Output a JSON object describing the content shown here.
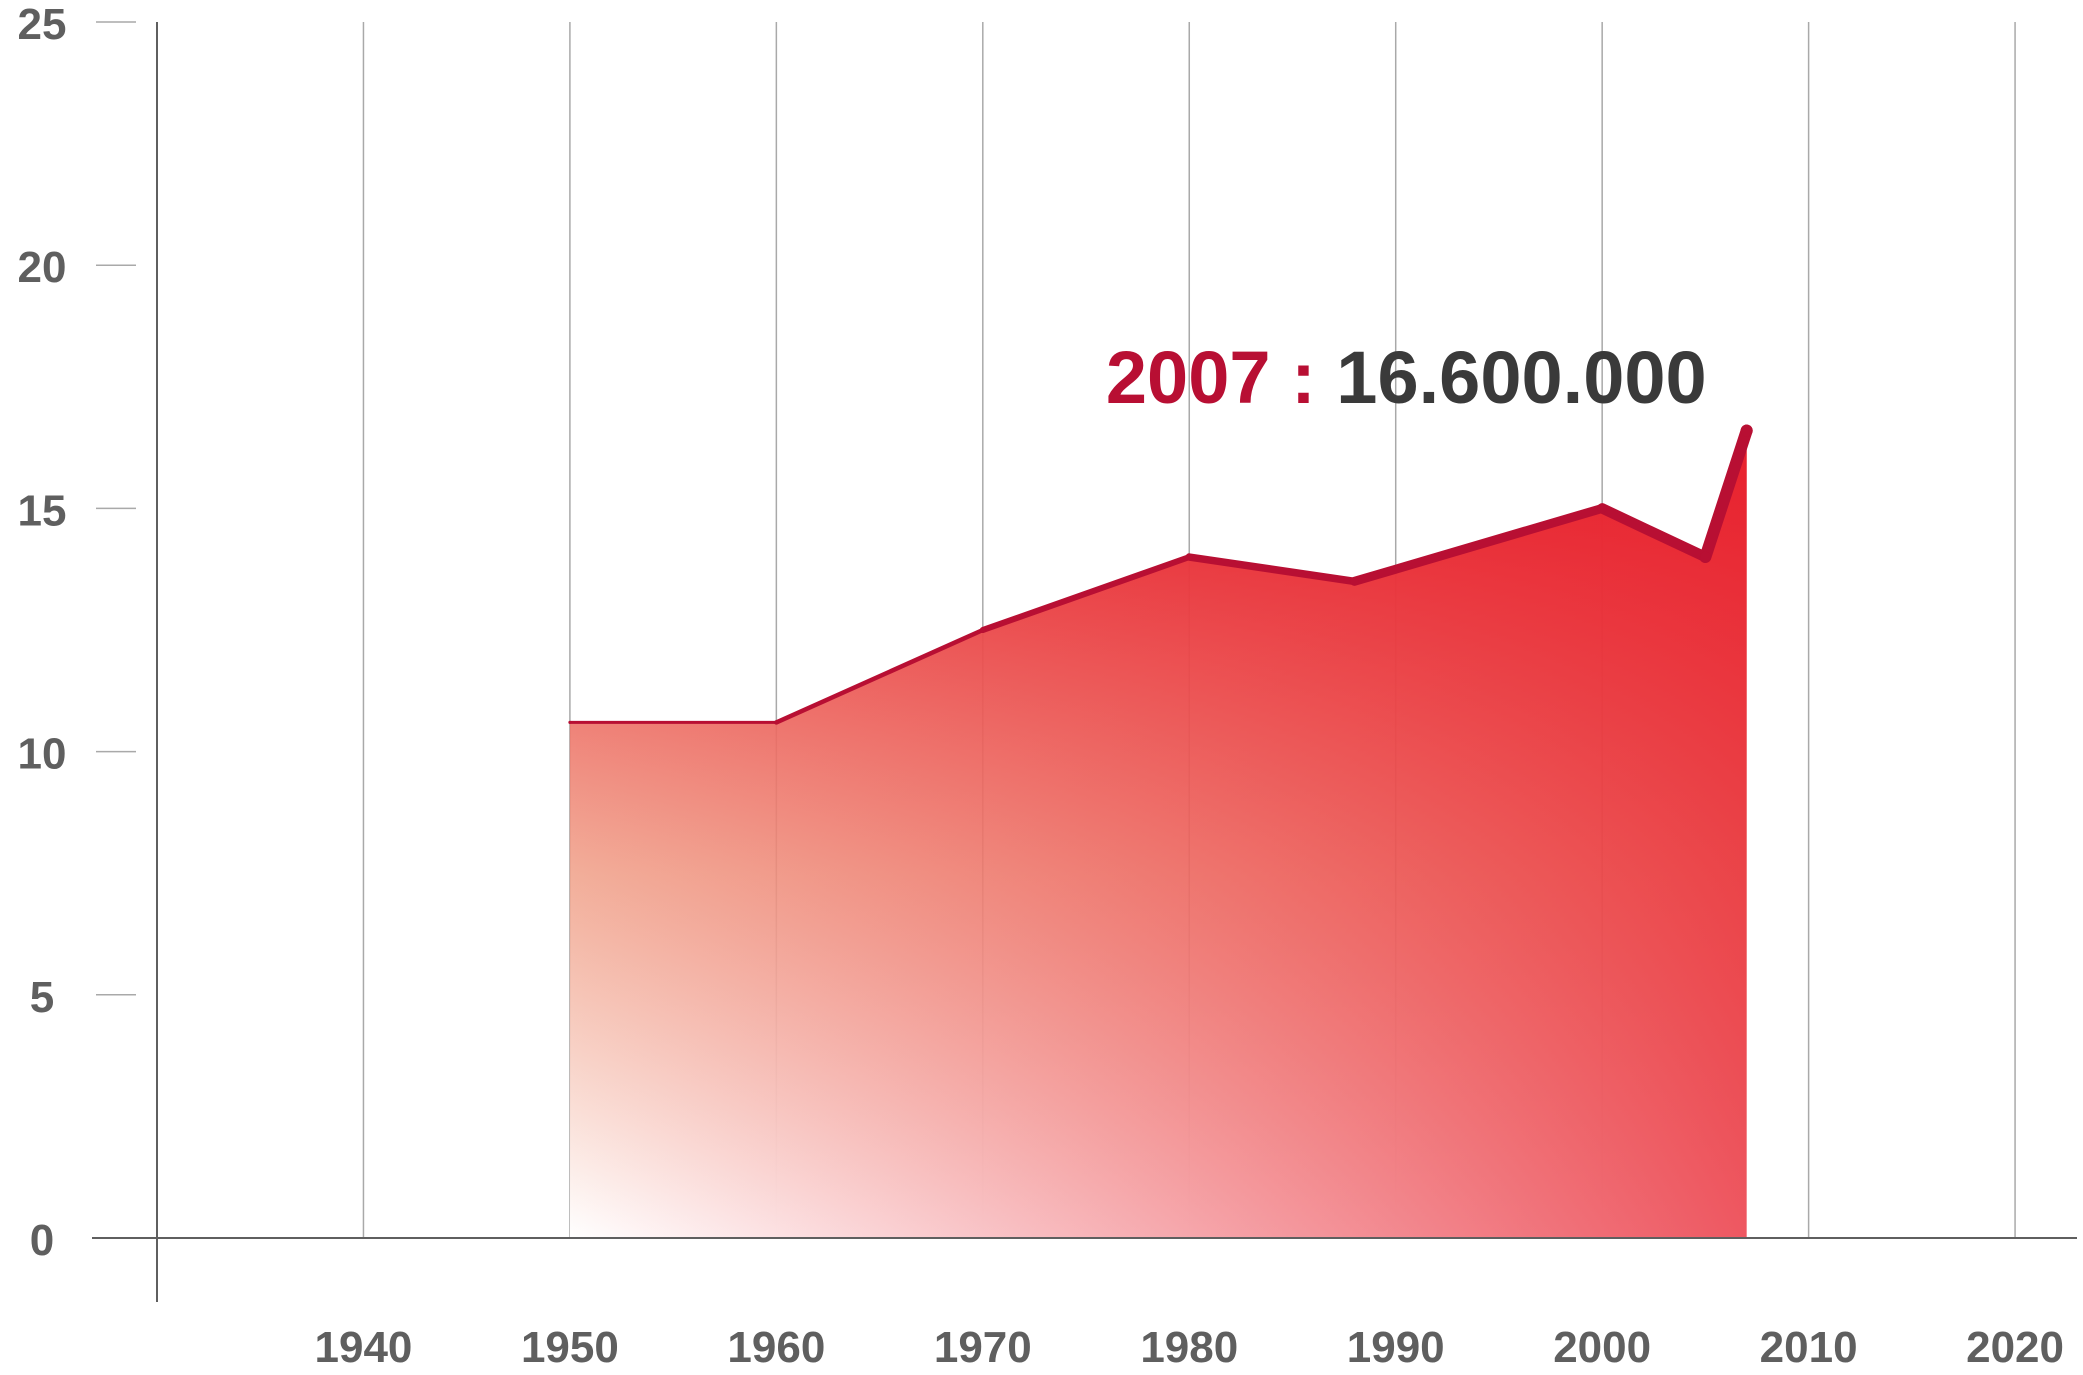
{
  "chart_data": {
    "type": "area",
    "title": "",
    "xlabel": "",
    "ylabel": "",
    "xlim": [
      1930,
      2023
    ],
    "ylim": [
      0,
      25
    ],
    "x_ticks": [
      "1940",
      "1950",
      "1960",
      "1970",
      "1980",
      "1990",
      "2000",
      "2010",
      "2020"
    ],
    "y_ticks": [
      "0",
      "5",
      "10",
      "15",
      "20",
      "25"
    ],
    "grid": "vertical",
    "series": [
      {
        "x": [
          1950,
          1960,
          1970,
          1980,
          1988,
          2000,
          2005,
          2007
        ],
        "y": [
          10.6,
          10.6,
          12.5,
          14.0,
          13.5,
          15.0,
          14.0,
          16.6
        ]
      }
    ],
    "annotation": {
      "x": 2007,
      "year": "2007",
      "separator": " : ",
      "value": "16.600.000"
    },
    "colors": {
      "line": "#b80f33",
      "area_top": "#e8202d",
      "area_mid": "#f0a088",
      "area_bottom": "#ffffff",
      "grid": "#a9a9a9",
      "axis": "#5f5f5f",
      "tick_label": "#5f5f5f"
    }
  }
}
